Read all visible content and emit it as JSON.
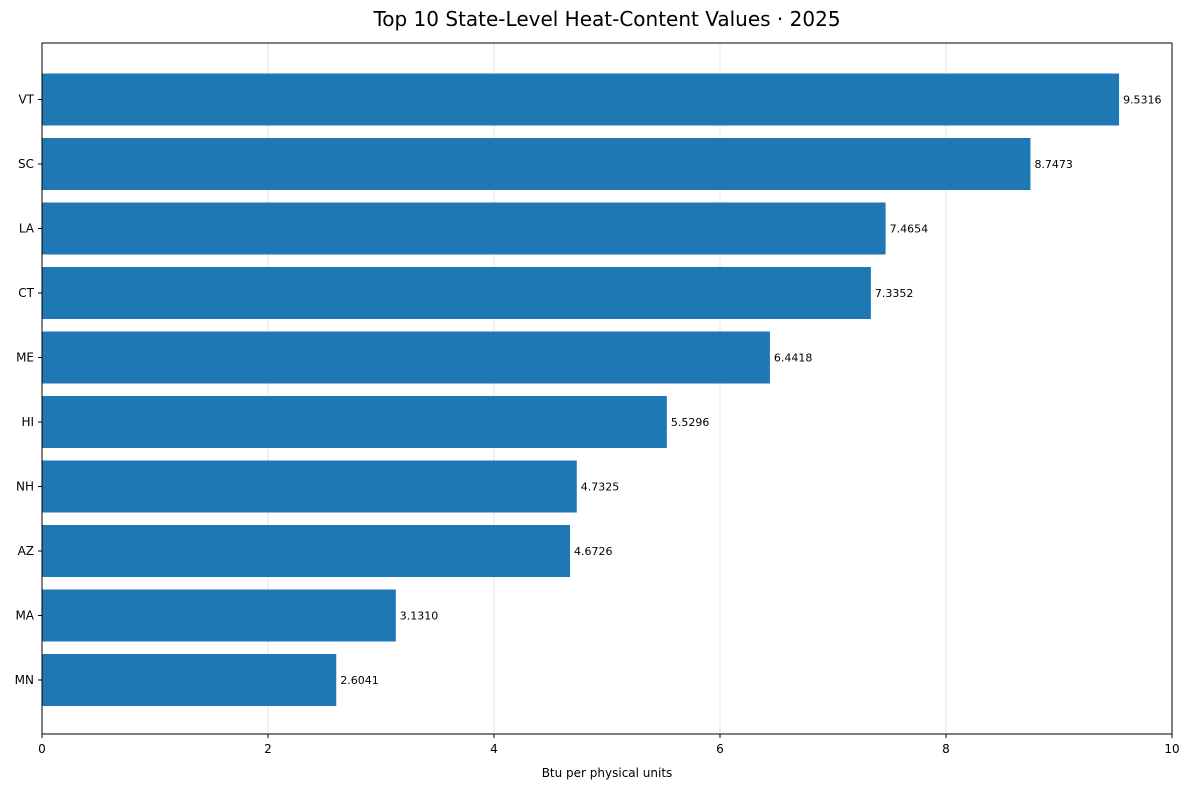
{
  "chart_data": {
    "type": "bar",
    "orientation": "horizontal",
    "title": "Top 10 State-Level Heat-Content Values · 2025",
    "xlabel": "Btu per physical units",
    "ylabel": "",
    "categories": [
      "VT",
      "SC",
      "LA",
      "CT",
      "ME",
      "HI",
      "NH",
      "AZ",
      "MA",
      "MN"
    ],
    "values": [
      9.5316,
      8.7473,
      7.4654,
      7.3352,
      6.4418,
      5.5296,
      4.7325,
      4.6726,
      3.131,
      2.6041
    ],
    "value_labels": [
      "9.5316",
      "8.7473",
      "7.4654",
      "7.3352",
      "6.4418",
      "5.5296",
      "4.7325",
      "4.6726",
      "3.1310",
      "2.6041"
    ],
    "xlim": [
      0,
      10
    ],
    "xticks": [
      0,
      2,
      4,
      6,
      8,
      10
    ],
    "xtick_labels": [
      "0",
      "2",
      "4",
      "6",
      "8",
      "10"
    ],
    "grid": "vertical",
    "bar_color": "#1f77b4"
  }
}
